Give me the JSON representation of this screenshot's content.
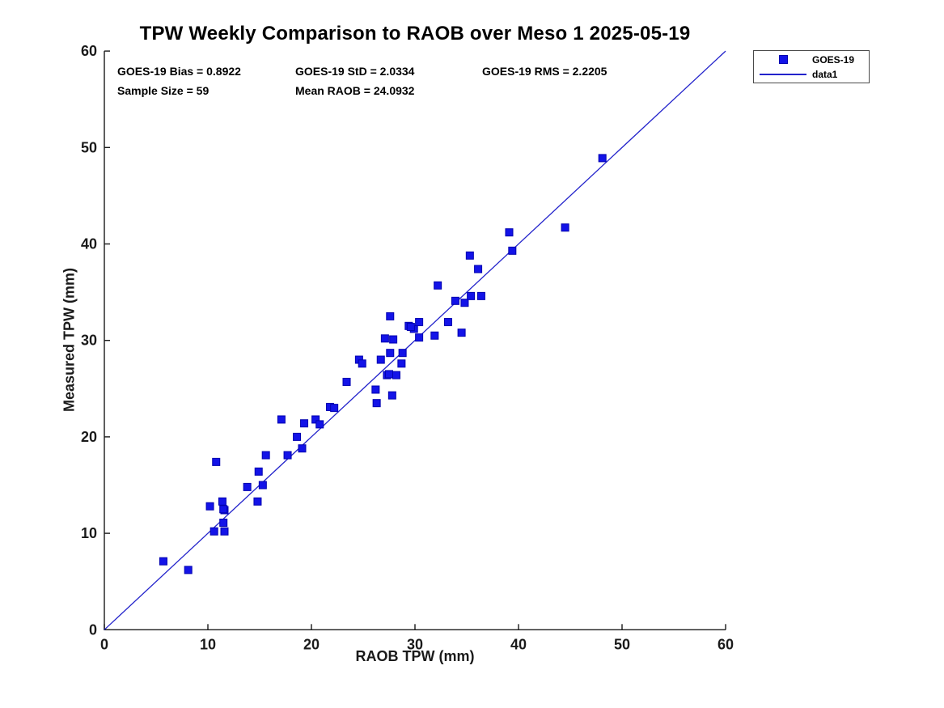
{
  "window": {
    "kind": "matlab-figure-screenshot"
  },
  "stats": {
    "bias_text": "GOES-19 Bias = 0.8922",
    "std_text": "GOES-19 StD = 2.0334",
    "rms_text": "GOES-19 RMS = 2.2205",
    "sample_text": "Sample Size = 59",
    "mean_text": "Mean RAOB = 24.0932"
  },
  "legend": {
    "items": [
      {
        "label": "GOES-19",
        "swatch": "blue-filled-square-marker"
      },
      {
        "label": "data1",
        "swatch": "blue-line"
      }
    ]
  },
  "colors": {
    "marker_fill": "#1313e8",
    "marker_edge": "#0202b0",
    "line_blue": "#2323cb",
    "axis_color": "#1a1a1a",
    "text_color": "#000000",
    "background": "#ffffff"
  },
  "chart_data": {
    "type": "scatter",
    "title": "TPW Weekly Comparison to RAOB over Meso 1 2025-05-19",
    "xlabel": "RAOB TPW (mm)",
    "ylabel": "Measured TPW (mm)",
    "xlim": [
      0,
      60
    ],
    "ylim": [
      0,
      60
    ],
    "xticks": [
      0,
      10,
      20,
      30,
      40,
      50,
      60
    ],
    "yticks": [
      0,
      10,
      20,
      30,
      40,
      50,
      60
    ],
    "grid": false,
    "legend_position": "outside-top-right",
    "refline": {
      "name": "data1",
      "from": [
        0,
        0
      ],
      "to": [
        60,
        60
      ]
    },
    "series": [
      {
        "name": "GOES-19",
        "marker": "square",
        "points": [
          [
            5.7,
            7.1
          ],
          [
            8.1,
            6.2
          ],
          [
            10.8,
            17.4
          ],
          [
            10.2,
            12.8
          ],
          [
            11.4,
            13.3
          ],
          [
            11.6,
            12.4
          ],
          [
            11.5,
            11.1
          ],
          [
            10.6,
            10.2
          ],
          [
            11.6,
            10.2
          ],
          [
            13.8,
            14.8
          ],
          [
            14.9,
            16.4
          ],
          [
            15.3,
            15.0
          ],
          [
            14.8,
            13.3
          ],
          [
            15.6,
            18.1
          ],
          [
            11.5,
            12.5
          ],
          [
            17.1,
            21.8
          ],
          [
            18.6,
            20.0
          ],
          [
            17.7,
            18.1
          ],
          [
            19.1,
            18.8
          ],
          [
            19.3,
            21.4
          ],
          [
            20.4,
            21.8
          ],
          [
            20.8,
            21.3
          ],
          [
            21.8,
            23.1
          ],
          [
            22.2,
            23.0
          ],
          [
            24.6,
            28.0
          ],
          [
            24.9,
            27.6
          ],
          [
            23.4,
            25.7
          ],
          [
            26.3,
            23.5
          ],
          [
            27.8,
            24.3
          ],
          [
            27.6,
            28.7
          ],
          [
            28.8,
            28.7
          ],
          [
            26.7,
            28.0
          ],
          [
            28.7,
            27.6
          ],
          [
            27.3,
            26.4
          ],
          [
            28.2,
            26.4
          ],
          [
            26.2,
            24.9
          ],
          [
            27.5,
            26.5
          ],
          [
            27.6,
            32.5
          ],
          [
            29.4,
            31.5
          ],
          [
            29.9,
            31.2
          ],
          [
            30.4,
            31.9
          ],
          [
            30.4,
            30.3
          ],
          [
            31.9,
            30.5
          ],
          [
            33.2,
            31.9
          ],
          [
            27.1,
            30.2
          ],
          [
            27.9,
            30.1
          ],
          [
            29.6,
            31.4
          ],
          [
            32.2,
            35.7
          ],
          [
            33.9,
            34.1
          ],
          [
            34.8,
            33.9
          ],
          [
            35.4,
            34.6
          ],
          [
            36.4,
            34.6
          ],
          [
            34.5,
            30.8
          ],
          [
            35.3,
            38.8
          ],
          [
            36.1,
            37.4
          ],
          [
            39.1,
            41.2
          ],
          [
            39.4,
            39.3
          ],
          [
            44.5,
            41.7
          ],
          [
            48.1,
            48.9
          ]
        ]
      }
    ],
    "sample_size": 59
  }
}
